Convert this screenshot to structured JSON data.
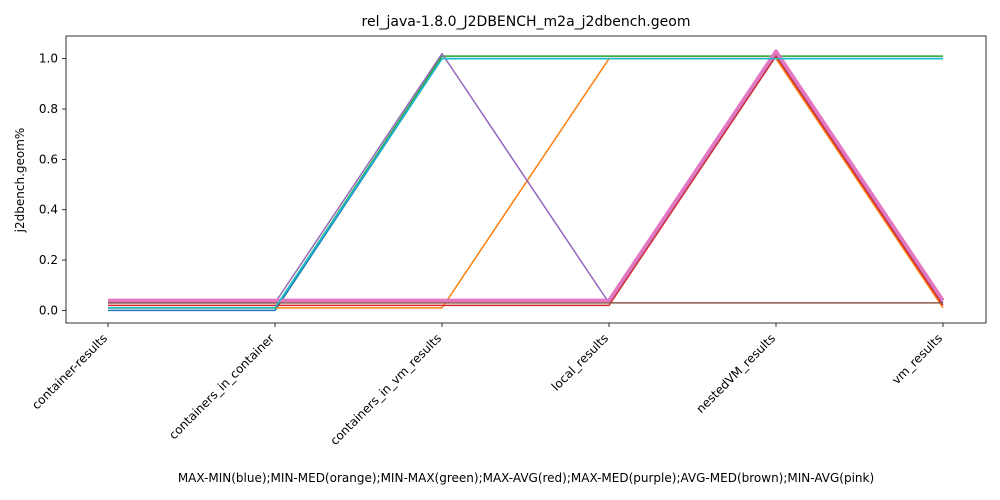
{
  "chart_data": {
    "type": "line",
    "title": "rel_java-1.8.0_J2DBENCH_m2a_j2dbench.geom",
    "xlabel": "MAX-MIN(blue);MIN-MED(orange);MIN-MAX(green);MAX-AVG(red);MAX-MED(purple);AVG-MED(brown);MIN-AVG(pink)",
    "ylabel": "j2dbench.geom%",
    "categories": [
      "container-results",
      "containers_in_container",
      "containers_in_vm_results",
      "local_results",
      "nestedVM_results",
      "vm_results"
    ],
    "ylim": [
      -0.05,
      1.09
    ],
    "yticks": [
      0.0,
      0.2,
      0.4,
      0.6,
      0.8,
      1.0
    ],
    "grid": false,
    "series": [
      {
        "color": "#1f77b4",
        "width": 1.5,
        "values": [
          0.0,
          0.0,
          1.0,
          1.0,
          1.0,
          1.0
        ]
      },
      {
        "color": "#ff7f0e",
        "width": 1.5,
        "values": [
          0.01,
          0.01,
          0.01,
          1.0,
          1.0,
          0.01
        ]
      },
      {
        "color": "#2ca02c",
        "width": 1.5,
        "values": [
          0.01,
          0.01,
          1.01,
          1.01,
          1.01,
          1.01
        ]
      },
      {
        "color": "#d62728",
        "width": 1.5,
        "values": [
          0.02,
          0.02,
          0.02,
          0.02,
          1.01,
          0.02
        ]
      },
      {
        "color": "#9467bd",
        "width": 1.5,
        "values": [
          0.03,
          0.03,
          1.02,
          0.03,
          1.02,
          0.03
        ]
      },
      {
        "color": "#8c564b",
        "width": 1.5,
        "values": [
          0.03,
          0.03,
          0.03,
          0.03,
          0.03,
          0.03
        ]
      },
      {
        "color": "#e377c2",
        "width": 3.5,
        "values": [
          0.04,
          0.04,
          0.04,
          0.04,
          1.03,
          0.04
        ]
      },
      {
        "color": "#17becf",
        "width": 1.5,
        "values": [
          0.01,
          0.01,
          1.0,
          1.0,
          1.0,
          1.0
        ]
      }
    ]
  }
}
